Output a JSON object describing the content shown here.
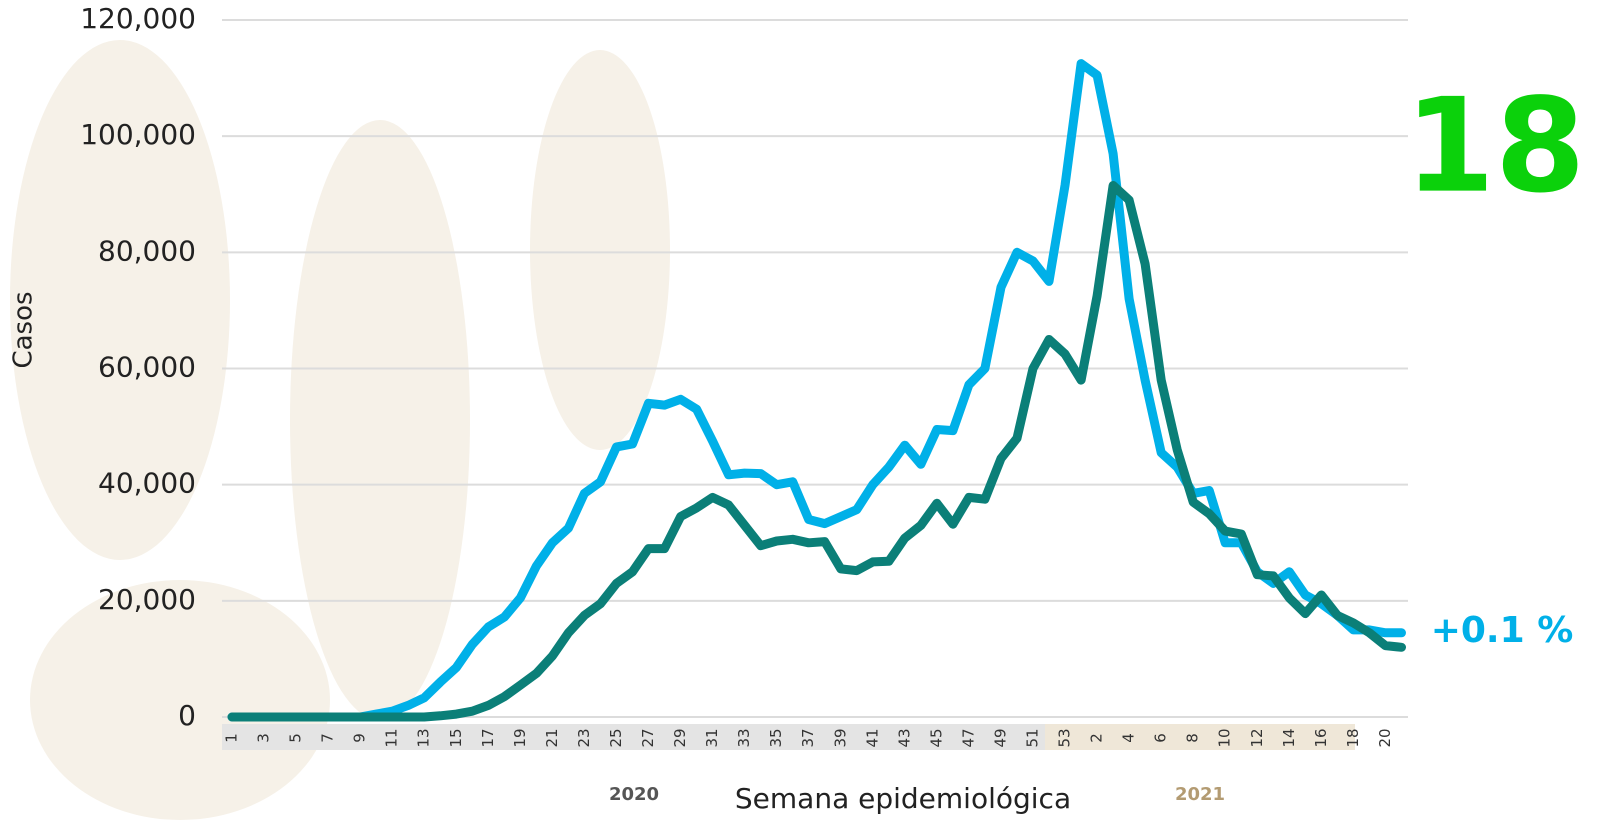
{
  "chart_data": {
    "type": "line",
    "y_label": "Casos",
    "x_label": "Semana epidemiológica",
    "year_labels": [
      "2020",
      "2021"
    ],
    "annotations": [
      "18",
      "+0.1 %"
    ],
    "categories": [
      "1",
      null,
      "3",
      null,
      "5",
      null,
      "7",
      null,
      "9",
      null,
      "11",
      null,
      "13",
      null,
      "15",
      null,
      "17",
      null,
      "19",
      null,
      "21",
      null,
      "23",
      null,
      "25",
      null,
      "27",
      null,
      "29",
      null,
      "31",
      null,
      "33",
      null,
      "35",
      null,
      "37",
      null,
      "39",
      null,
      "41",
      null,
      "43",
      null,
      "45",
      null,
      "47",
      null,
      "49",
      null,
      "51",
      null,
      "53",
      null,
      "2",
      null,
      "4",
      null,
      "6",
      null,
      "8",
      null,
      "10",
      null,
      "12",
      null,
      "14",
      null,
      "16",
      null,
      "18",
      null,
      "20",
      null
    ],
    "series": [
      {
        "color": "#00b0e8",
        "values": [
          0,
          0,
          0,
          0,
          0,
          0,
          0,
          0,
          0,
          500,
          1000,
          2000,
          3300,
          6000,
          8500,
          12500,
          15500,
          17200,
          20500,
          26000,
          30000,
          32500,
          38500,
          40500,
          46500,
          47000,
          54000,
          53700,
          54700,
          53000,
          47500,
          41700,
          42000,
          41900,
          40000,
          40500,
          34000,
          33300,
          34500,
          35700,
          40000,
          43000,
          46800,
          43500,
          49500,
          49300,
          57200,
          60000,
          74000,
          80000,
          78500,
          75000,
          91500,
          112500,
          110500,
          97000,
          72000,
          58000,
          45500,
          43000,
          38500,
          39000,
          30000,
          30000,
          25000,
          23000,
          25000,
          21000,
          19500,
          17500,
          15000,
          15000,
          14500,
          14500
        ]
      },
      {
        "color": "#0b7f78",
        "values": [
          0,
          0,
          0,
          0,
          0,
          0,
          0,
          0,
          0,
          0,
          0,
          0,
          0,
          200,
          500,
          1000,
          2000,
          3500,
          5500,
          7500,
          10500,
          14500,
          17500,
          19500,
          23000,
          25000,
          29000,
          29000,
          34500,
          36000,
          37800,
          36500,
          33000,
          29500,
          30300,
          30600,
          30000,
          30200,
          25500,
          25200,
          26700,
          26800,
          30800,
          33000,
          36800,
          33200,
          37800,
          37500,
          44500,
          48000,
          60000,
          65000,
          62500,
          58000,
          72500,
          91500,
          89000,
          78000,
          58000,
          46000,
          37000,
          35000,
          32000,
          31500,
          24500,
          24300,
          20500,
          17800,
          21000,
          17500,
          16200,
          14500,
          12300,
          12000
        ]
      }
    ],
    "ylim": [
      0,
      120000
    ],
    "yticks": [
      0,
      {
        "value": 20000,
        "label": "20,000"
      },
      {
        "value": 40000,
        "label": "40,000"
      },
      {
        "value": 60000,
        "label": "60,000"
      },
      {
        "value": 80000,
        "label": "80,000"
      },
      {
        "value": 100000,
        "label": "100,000"
      },
      {
        "value": 120000,
        "label": "120,000"
      }
    ],
    "grid": true
  }
}
